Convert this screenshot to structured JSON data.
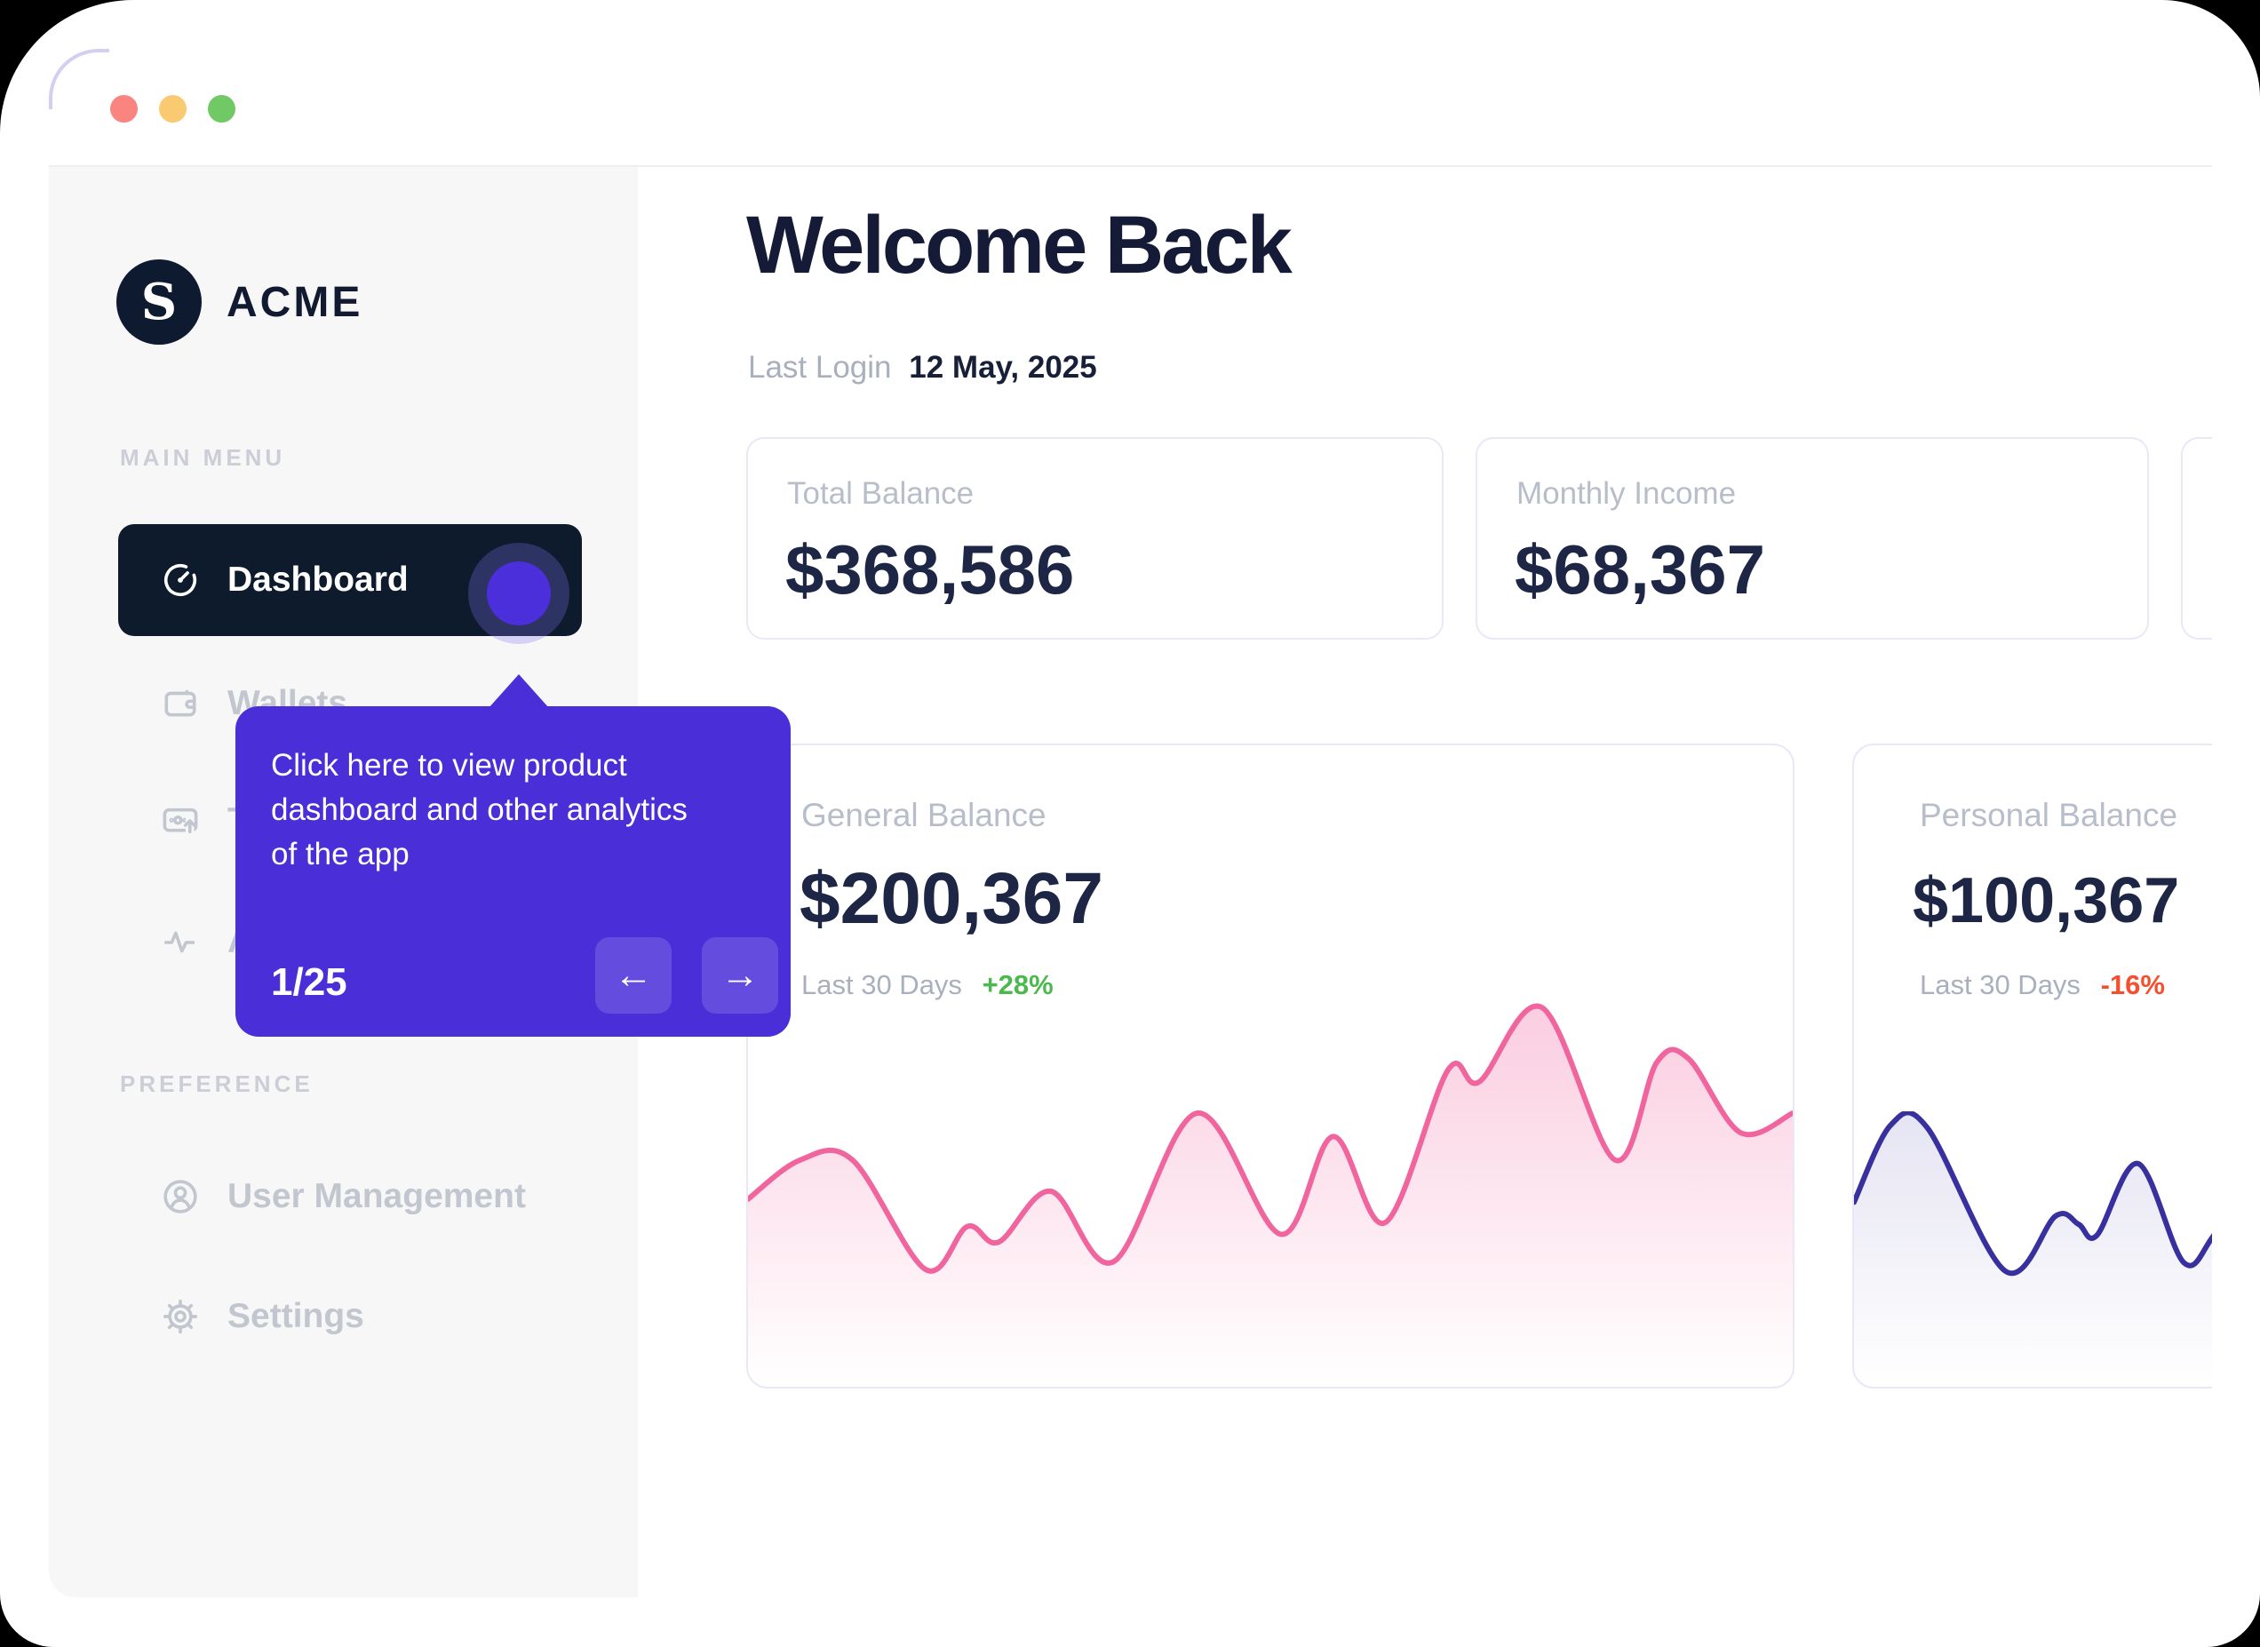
{
  "colors": {
    "accent_purple": "#4A2FD9",
    "active_nav_navy": "#0D1B2D",
    "heading_navy": "#151B37",
    "amount_navy": "#1D2644",
    "muted_gray": "#B7BDC9",
    "sidebar_bg": "#F7F7F8",
    "positive_green": "#4CB94F",
    "negative_red": "#F4502F",
    "pink_line": "#F1659F",
    "indigo_line": "#38309F",
    "traffic_red": "#FA8480",
    "traffic_yellow": "#FACA72",
    "traffic_green": "#70C964"
  },
  "sidebar": {
    "logo": {
      "initial": "S",
      "brand": "ACME"
    },
    "sections": [
      {
        "label": "MAIN MENU",
        "items": [
          {
            "label": "Dashboard",
            "icon": "gauge-icon",
            "active": true
          },
          {
            "label": "Wallets",
            "icon": "wallet-icon",
            "active": false
          },
          {
            "label": "Transactions",
            "icon": "card-upload-icon",
            "active": false
          },
          {
            "label": "Analytics",
            "icon": "activity-icon",
            "active": false
          }
        ]
      },
      {
        "label": "PREFERENCE",
        "items": [
          {
            "label": "User Management",
            "icon": "user-circle-icon",
            "active": false
          },
          {
            "label": "Settings",
            "icon": "gear-icon",
            "active": false
          }
        ]
      }
    ]
  },
  "onboarding_tooltip": {
    "text": "Click here to view product dashboard and other analytics of the app",
    "text_lines": [
      "Click here to view product",
      "dashboard and other analytics",
      "of the app"
    ],
    "step": "1/25",
    "prev_icon": "←",
    "next_icon": "→"
  },
  "header": {
    "title": "Welcome Back",
    "last_login_label": "Last Login",
    "last_login_date": "12 May, 2025"
  },
  "stat_cards": [
    {
      "label": "Total Balance",
      "value": "$368,586"
    },
    {
      "label": "Monthly Income",
      "value": "$68,367"
    },
    {
      "label": "",
      "value": "",
      "clipped_at_right_edge": true
    }
  ],
  "balance_cards": [
    {
      "label": "General Balance",
      "value": "$200,367",
      "period": "Last 30 Days",
      "change": "+28%",
      "trend": "up"
    },
    {
      "label": "Personal Balance",
      "value": "$100,367",
      "period": "Last 30 Days",
      "change": "-16%",
      "trend": "down"
    }
  ],
  "chart_data": [
    {
      "type": "area",
      "name": "General Balance sparkline (Last 30 Days, +28%)",
      "line_color": "#F1659F",
      "fill_opacity_top": 0.32,
      "axes": "hidden sparkline",
      "units": "percent of plot box, y measured from top",
      "points_pct": [
        [
          0,
          52
        ],
        [
          5,
          42
        ],
        [
          10,
          42
        ],
        [
          17,
          70
        ],
        [
          21,
          59
        ],
        [
          24,
          63
        ],
        [
          29,
          50
        ],
        [
          35,
          68
        ],
        [
          43,
          30
        ],
        [
          51,
          61
        ],
        [
          56,
          36
        ],
        [
          61,
          58
        ],
        [
          67,
          19
        ],
        [
          70,
          22
        ],
        [
          76,
          3
        ],
        [
          83,
          42
        ],
        [
          87,
          17
        ],
        [
          90,
          16
        ],
        [
          95,
          35
        ],
        [
          100,
          30
        ]
      ]
    },
    {
      "type": "area",
      "name": "Personal Balance sparkline (Last 30 Days, -16%)",
      "line_color": "#38309F",
      "fill_opacity_top": 0.13,
      "axes": "hidden sparkline",
      "units": "percent of plot box, y measured from top; right side clipped by viewport",
      "points_pct": [
        [
          0,
          33
        ],
        [
          8,
          5
        ],
        [
          16,
          6
        ],
        [
          33,
          58
        ],
        [
          44,
          38
        ],
        [
          49,
          41
        ],
        [
          53,
          45
        ],
        [
          62,
          19
        ],
        [
          72,
          55
        ],
        [
          79,
          44
        ],
        [
          90,
          22
        ],
        [
          100,
          10
        ]
      ]
    }
  ]
}
